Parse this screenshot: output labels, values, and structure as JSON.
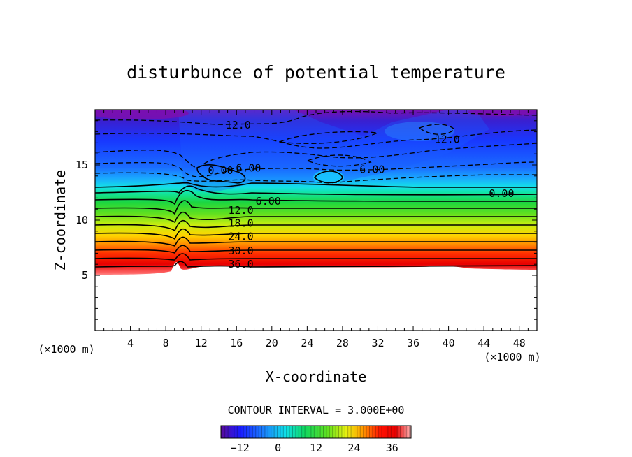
{
  "chart_data": {
    "type": "heatmap",
    "title": "disturbunce of potential temperature",
    "xlabel": "X-coordinate",
    "ylabel": "Z-coordinate",
    "x_unit": "(×1000 m)",
    "z_unit": "(×1000 m)",
    "xlim": [
      0,
      50
    ],
    "ylim": [
      0,
      20
    ],
    "x_ticks": [
      4,
      8,
      12,
      16,
      20,
      24,
      28,
      32,
      36,
      40,
      44,
      48
    ],
    "y_ticks": [
      5,
      10,
      15
    ],
    "contour_interval_text": "CONTOUR INTERVAL = 3.000E+00",
    "contour_labels": [
      {
        "text": "12.0",
        "x": 16.2,
        "z": 18.6
      },
      {
        "text": "-12.0",
        "x": 39.5,
        "z": 17.3
      },
      {
        "text": "0.00",
        "x": 14.2,
        "z": 14.5
      },
      {
        "text": "-6.00",
        "x": 17.0,
        "z": 14.7
      },
      {
        "text": "-6.00",
        "x": 31.0,
        "z": 14.6
      },
      {
        "text": "0.00",
        "x": 46.0,
        "z": 12.4
      },
      {
        "text": "6.00",
        "x": 19.6,
        "z": 11.7
      },
      {
        "text": "12.0",
        "x": 16.5,
        "z": 10.9
      },
      {
        "text": "18.0",
        "x": 16.5,
        "z": 9.7
      },
      {
        "text": "24.0",
        "x": 16.5,
        "z": 8.5
      },
      {
        "text": "30.0",
        "x": 16.5,
        "z": 7.2
      },
      {
        "text": "36.0",
        "x": 16.5,
        "z": 6.0
      }
    ],
    "colorbar": {
      "min": -18,
      "max": 42,
      "ticks": [
        -12,
        0,
        12,
        24,
        36
      ]
    }
  }
}
